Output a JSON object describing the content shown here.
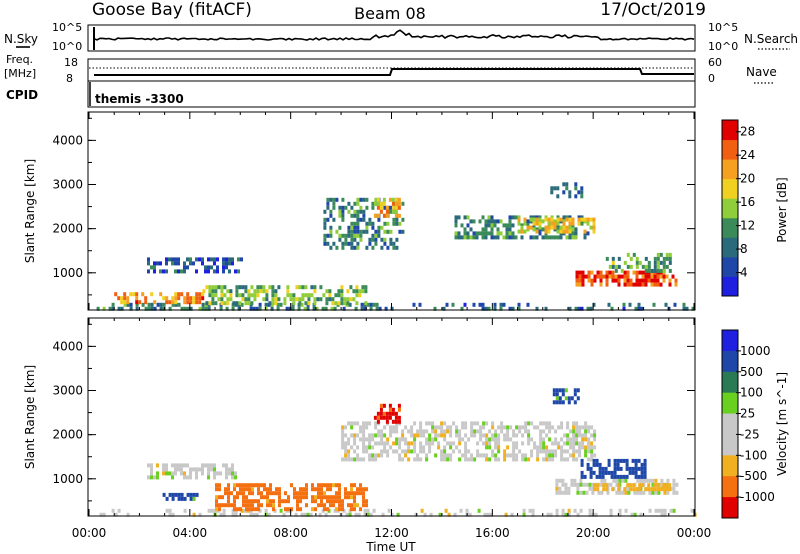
{
  "header": {
    "station_title": "Goose Bay (fitACF)",
    "beam_title": "Beam 08",
    "date_title": "17/Oct/2019"
  },
  "summary_panels": {
    "nsky_label": "N.Sky",
    "nsearch_label": "N.Search",
    "count_ticks": [
      "10^5",
      "10^0"
    ],
    "freq_label": "Freq.",
    "freq_unit": "[MHz]",
    "freq_ticks": [
      "18",
      "8"
    ],
    "nave_label": "Nave",
    "nave_ticks": [
      "60",
      "0"
    ],
    "cpid_label": "CPID",
    "cpid_text": "themis -3300"
  },
  "colors": {
    "power_scale": [
      "#1f1fe0",
      "#1f47a8",
      "#2a6a7a",
      "#3a8a5a",
      "#8fcd3a",
      "#f0d020",
      "#f5a020",
      "#f06010",
      "#e00000"
    ],
    "velocity_scale": [
      "#1f1fe0",
      "#1f47a8",
      "#2a7a55",
      "#6ad020",
      "#c8c8c8",
      "#c8c8c8",
      "#f0b020",
      "#f57010",
      "#e00000"
    ],
    "accent_line": "#000000"
  },
  "chart_data": [
    {
      "type": "heatmap",
      "title": "",
      "xlabel": "",
      "ylabel": "Slant Range [km]",
      "xlim": [
        "00:00",
        "24:00"
      ],
      "ylim": [
        180,
        4620
      ],
      "y_ticks": [
        1000,
        2000,
        3000,
        4000
      ],
      "grid": false,
      "colorbar": {
        "label": "Power [dB]",
        "ticks": [
          4,
          8,
          12,
          16,
          20,
          24,
          28
        ],
        "range": [
          0,
          30
        ]
      },
      "regions": [
        {
          "t0": 0.3,
          "t1": 12.0,
          "r0": 200,
          "r1": 320,
          "value": 10,
          "density": 0.5
        },
        {
          "t0": 12.0,
          "t1": 24.0,
          "r0": 200,
          "r1": 320,
          "value": 8,
          "density": 0.25
        },
        {
          "t0": 1.0,
          "t1": 4.5,
          "r0": 340,
          "r1": 560,
          "value": 22,
          "density": 0.6
        },
        {
          "t0": 4.5,
          "t1": 11.0,
          "r0": 330,
          "r1": 720,
          "value": 14,
          "density": 0.55
        },
        {
          "t0": 2.3,
          "t1": 6.0,
          "r0": 1050,
          "r1": 1350,
          "value": 6,
          "density": 0.5
        },
        {
          "t0": 9.3,
          "t1": 12.5,
          "r0": 1600,
          "r1": 2700,
          "value": 10,
          "density": 0.45
        },
        {
          "t0": 11.3,
          "t1": 12.3,
          "r0": 2300,
          "r1": 2700,
          "value": 20,
          "density": 0.7
        },
        {
          "t0": 14.5,
          "t1": 19.8,
          "r0": 1800,
          "r1": 2300,
          "value": 10,
          "density": 0.55
        },
        {
          "t0": 17.0,
          "t1": 20.0,
          "r0": 1950,
          "r1": 2250,
          "value": 18,
          "density": 0.6
        },
        {
          "t0": 19.3,
          "t1": 23.3,
          "r0": 700,
          "r1": 1050,
          "value": 26,
          "density": 0.8
        },
        {
          "t0": 20.5,
          "t1": 23.0,
          "r0": 1050,
          "r1": 1450,
          "value": 12,
          "density": 0.5
        },
        {
          "t0": 18.3,
          "t1": 19.5,
          "r0": 2700,
          "r1": 3050,
          "value": 8,
          "density": 0.5
        }
      ]
    },
    {
      "type": "heatmap",
      "title": "",
      "xlabel": "Time UT",
      "ylabel": "Slant Range [km]",
      "xlim": [
        "00:00",
        "24:00"
      ],
      "x_ticks": [
        "00:00",
        "04:00",
        "08:00",
        "12:00",
        "16:00",
        "20:00",
        "00:00"
      ],
      "ylim": [
        180,
        4620
      ],
      "y_ticks": [
        1000,
        2000,
        3000,
        4000
      ],
      "grid": false,
      "colorbar": {
        "label": "Velocity [m s^-1]",
        "ticks": [
          1000,
          500,
          100,
          25,
          -25,
          -100,
          -500,
          -1000
        ]
      },
      "regions": [
        {
          "t0": 0.3,
          "t1": 24.0,
          "r0": 200,
          "r1": 320,
          "value": 0,
          "density": 0.3
        },
        {
          "t0": 2.3,
          "t1": 5.8,
          "r0": 1050,
          "r1": 1350,
          "value": 0,
          "density": 0.55
        },
        {
          "t0": 2.8,
          "t1": 4.3,
          "r0": 520,
          "r1": 680,
          "value": 150,
          "density": 0.7
        },
        {
          "t0": 5.0,
          "t1": 11.0,
          "r0": 350,
          "r1": 900,
          "value": -150,
          "density": 0.6
        },
        {
          "t0": 10.0,
          "t1": 20.0,
          "r0": 1450,
          "r1": 2300,
          "value": 0,
          "density": 0.55
        },
        {
          "t0": 11.3,
          "t1": 12.3,
          "r0": 2300,
          "r1": 2700,
          "value": -700,
          "density": 0.6
        },
        {
          "t0": 18.5,
          "t1": 23.3,
          "r0": 700,
          "r1": 1000,
          "value": 0,
          "density": 0.7
        },
        {
          "t0": 19.5,
          "t1": 22.0,
          "r0": 1000,
          "r1": 1450,
          "value": 300,
          "density": 0.6
        },
        {
          "t0": 20.0,
          "t1": 23.0,
          "r0": 750,
          "r1": 900,
          "value": -60,
          "density": 0.7
        },
        {
          "t0": 18.4,
          "t1": 19.4,
          "r0": 2750,
          "r1": 3050,
          "value": 150,
          "density": 0.6
        }
      ]
    }
  ]
}
